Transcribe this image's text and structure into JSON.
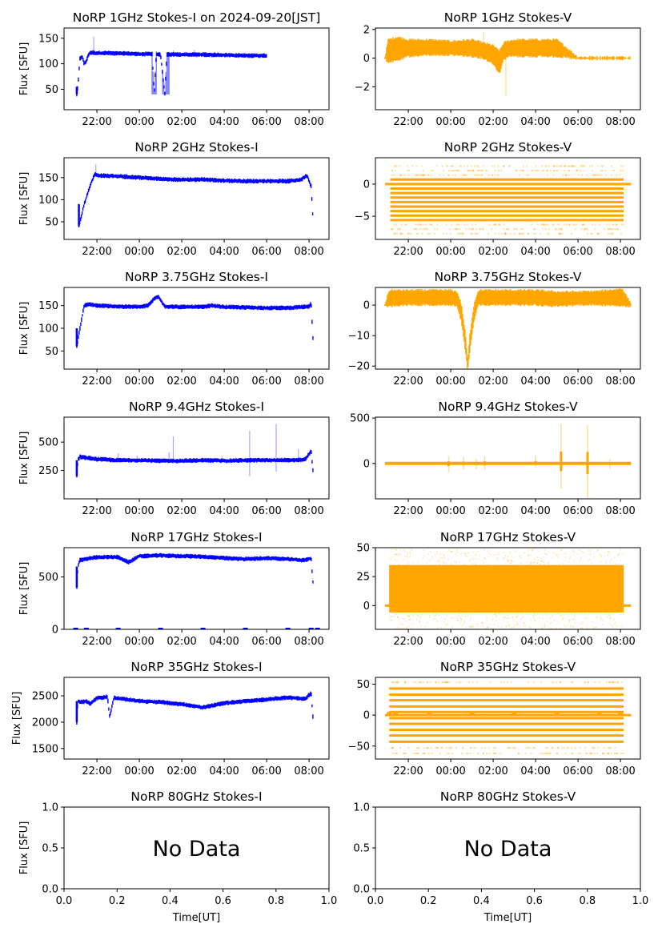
{
  "figure": {
    "panels_per_row": 2,
    "x_time_ticks": [
      "22:00",
      "00:00",
      "02:00",
      "04:00",
      "06:00",
      "08:00"
    ],
    "x_time_tick_hours": [
      0,
      2,
      4,
      6,
      8,
      10
    ],
    "x_time_range_hours_from_2200": [
      -1.55,
      10.94
    ],
    "colors": {
      "stokes_i": "#0000ff",
      "stokes_v": "#ffa500",
      "axes": "#000000"
    }
  },
  "chart_data": [
    {
      "type": "scatter",
      "id": "1ghz-i",
      "title": "NoRP 1GHz Stokes-I on 2024-09-20[JST]",
      "ylabel": "Flux [SFU]",
      "xlabel": "",
      "ylim": [
        10,
        170
      ],
      "yticks": [
        50,
        100,
        150
      ],
      "ytick_labels": [
        "50",
        "100",
        "150"
      ],
      "stokes": "I",
      "grid": false,
      "series": [
        {
          "name": "Stokes-I",
          "color": "#0000ff",
          "x_hours": [
            -0.95,
            -0.9,
            -0.8,
            -0.7,
            -0.6,
            -0.5,
            -0.4,
            -0.3,
            -0.2,
            -0.1,
            0,
            0.5,
            1,
            1.5,
            2,
            2.4,
            2.6,
            2.7,
            2.8,
            3.0,
            3.2,
            3.3,
            3.5,
            4,
            5,
            6,
            7,
            7.5,
            8
          ],
          "values": [
            40,
            55,
            110,
            115,
            100,
            105,
            118,
            122,
            122,
            121,
            121,
            121,
            120,
            120,
            119,
            119,
            119,
            40,
            119,
            118,
            40,
            118,
            118,
            118,
            118,
            117,
            116,
            116,
            116
          ],
          "spikes": [
            {
              "x_hours": -0.15,
              "value": 153
            },
            {
              "x_hours": 3.6,
              "value": 126
            },
            {
              "x_hours": 4.6,
              "value": 127
            }
          ],
          "dropouts": [
            {
              "x_from": 2.6,
              "x_to": 2.8,
              "value": 40
            },
            {
              "x_from": 3.1,
              "x_to": 3.4,
              "value": 40
            }
          ]
        }
      ]
    },
    {
      "type": "scatter",
      "id": "1ghz-v",
      "title": "NoRP 1GHz Stokes-V",
      "ylabel": "",
      "xlabel": "",
      "ylim": [
        -3.6,
        2.1
      ],
      "yticks": [
        -2,
        0,
        2
      ],
      "ytick_labels": [
        "−2",
        "0",
        "2"
      ],
      "stokes": "V",
      "grid": false,
      "series": [
        {
          "name": "Stokes-V",
          "color": "#ffa500",
          "x_hours": [
            -1.1,
            -0.95,
            -0.5,
            0,
            1,
            2,
            3,
            3.5,
            4.0,
            4.3,
            4.5,
            4.7,
            5,
            6,
            7,
            8,
            10.5
          ],
          "values_low": [
            0,
            -0.2,
            -0.1,
            0.2,
            0.3,
            0.3,
            0.2,
            0.1,
            -0.3,
            -1.0,
            0.0,
            0.2,
            0.2,
            0.2,
            0.2,
            0,
            0
          ],
          "values_high": [
            0,
            1.2,
            1.4,
            1.2,
            1.2,
            1.1,
            1.2,
            1.0,
            0.8,
            0.4,
            1.0,
            1.1,
            1.2,
            1.2,
            1.2,
            0,
            0
          ],
          "spikes": [
            {
              "x_hours": 4.6,
              "value": -2.6
            },
            {
              "x_hours": 3.55,
              "value": 1.8
            }
          ]
        }
      ]
    },
    {
      "type": "scatter",
      "id": "2ghz-i",
      "title": "NoRP 2GHz Stokes-I",
      "ylabel": "Flux [SFU]",
      "xlabel": "",
      "ylim": [
        10,
        195
      ],
      "yticks": [
        50,
        100,
        150
      ],
      "ytick_labels": [
        "50",
        "100",
        "150"
      ],
      "stokes": "I",
      "grid": false,
      "series": [
        {
          "name": "Stokes-I",
          "color": "#0000ff",
          "x_hours": [
            -0.85,
            -0.6,
            -0.3,
            -0.1,
            0,
            1,
            2,
            3,
            4,
            5,
            6,
            7,
            8,
            9,
            9.6,
            9.9,
            10.1,
            10.2
          ],
          "values": [
            40,
            90,
            135,
            158,
            155,
            153,
            150,
            147,
            145,
            146,
            143,
            142,
            142,
            142,
            145,
            155,
            130,
            40
          ],
          "spikes": [
            {
              "x_hours": -0.05,
              "value": 180
            }
          ]
        }
      ]
    },
    {
      "type": "scatter",
      "id": "2ghz-v",
      "title": "NoRP 2GHz Stokes-V",
      "ylabel": "",
      "xlabel": "",
      "ylim": [
        -8.6,
        4.1
      ],
      "yticks": [
        -5,
        0
      ],
      "ytick_labels": [
        "−5",
        "0"
      ],
      "stokes": "V",
      "grid": false,
      "series": [
        {
          "name": "Stokes-V",
          "color": "#ffa500",
          "x_range_hours": [
            -0.85,
            10.15
          ],
          "zero_line_x_range": [
            -1.1,
            10.5
          ],
          "quantized_levels": [
            2.8,
            2.1,
            1.4,
            0.7,
            0,
            -0.7,
            -1.4,
            -2.1,
            -2.8,
            -3.5,
            -4.2,
            -4.9,
            -5.6,
            -6.3,
            -7.0,
            -7.7
          ],
          "dense_levels": [
            0.7,
            0,
            -0.7,
            -1.4,
            -2.1,
            -2.8,
            -3.5,
            -4.2,
            -4.9,
            -5.6
          ],
          "sparse_levels": [
            2.8,
            2.1,
            1.4,
            -6.3,
            -7.0,
            -7.7
          ]
        }
      ]
    },
    {
      "type": "scatter",
      "id": "3.75ghz-i",
      "title": "NoRP 3.75GHz Stokes-I",
      "ylabel": "Flux [SFU]",
      "xlabel": "",
      "ylim": [
        10,
        190
      ],
      "yticks": [
        50,
        100,
        150
      ],
      "ytick_labels": [
        "50",
        "100",
        "150"
      ],
      "stokes": "I",
      "grid": false,
      "series": [
        {
          "name": "Stokes-I",
          "color": "#0000ff",
          "x_hours": [
            -0.95,
            -0.8,
            -0.6,
            -0.35,
            0,
            1,
            2,
            2.4,
            2.7,
            2.9,
            3.2,
            4,
            5,
            5.4,
            6,
            7,
            8,
            9,
            10,
            10.1,
            10.2
          ],
          "values": [
            60,
            100,
            150,
            153,
            150,
            148,
            147,
            150,
            165,
            170,
            148,
            147,
            147,
            150,
            147,
            146,
            145,
            145,
            148,
            155,
            60
          ]
        }
      ]
    },
    {
      "type": "scatter",
      "id": "3.75ghz-v",
      "title": "NoRP 3.75GHz Stokes-V",
      "ylabel": "",
      "xlabel": "",
      "ylim": [
        -21,
        5.8
      ],
      "yticks": [
        -20,
        -10,
        0
      ],
      "ytick_labels": [
        "−20",
        "−10",
        "0"
      ],
      "stokes": "V",
      "grid": false,
      "series": [
        {
          "name": "Stokes-V",
          "color": "#ffa500",
          "x_hours": [
            -1.1,
            -0.9,
            0,
            1,
            2,
            2.3,
            2.5,
            2.7,
            2.8,
            2.9,
            3.1,
            3.3,
            4,
            5,
            6,
            7,
            8,
            9,
            10.1,
            10.5
          ],
          "values_low": [
            0,
            0,
            0.5,
            0.5,
            0.5,
            0,
            -5,
            -15,
            -21,
            -15,
            -5,
            0.5,
            0.5,
            0.5,
            0.5,
            0,
            0.5,
            0.5,
            0,
            0
          ],
          "values_high": [
            0,
            4.5,
            4.5,
            4.5,
            4.5,
            4,
            0,
            -10,
            -19,
            -10,
            0,
            4.5,
            4.5,
            4.5,
            4.5,
            4,
            4,
            4.2,
            5,
            0
          ]
        }
      ]
    },
    {
      "type": "scatter",
      "id": "9.4ghz-i",
      "title": "NoRP 9.4GHz Stokes-I",
      "ylabel": "Flux [SFU]",
      "xlabel": "",
      "ylim": [
        0,
        720
      ],
      "yticks": [
        250,
        500
      ],
      "ytick_labels": [
        "250",
        "500"
      ],
      "stokes": "I",
      "grid": false,
      "series": [
        {
          "name": "Stokes-I",
          "color": "#0000ff",
          "x_hours": [
            -0.95,
            -0.9,
            -0.8,
            0,
            1,
            2,
            3,
            4,
            5,
            6,
            7,
            8,
            9,
            9.8,
            10.1,
            10.2
          ],
          "values": [
            200,
            340,
            370,
            350,
            340,
            340,
            335,
            335,
            340,
            335,
            340,
            340,
            340,
            345,
            420,
            210
          ],
          "spikes": [
            {
              "x_hours": 1.0,
              "value": 400
            },
            {
              "x_hours": 1.9,
              "value": 380
            },
            {
              "x_hours": 3.4,
              "value": 410
            },
            {
              "x_hours": 3.6,
              "value": 550
            },
            {
              "x_hours": 5.9,
              "value": 375
            },
            {
              "x_hours": 7.2,
              "value": 600
            },
            {
              "x_hours": 7.2,
              "value": 200
            },
            {
              "x_hours": 8.45,
              "value": 660
            },
            {
              "x_hours": 8.45,
              "value": 240
            },
            {
              "x_hours": 9.5,
              "value": 440
            }
          ]
        }
      ]
    },
    {
      "type": "scatter",
      "id": "9.4ghz-v",
      "title": "NoRP 9.4GHz Stokes-V",
      "ylabel": "",
      "xlabel": "",
      "ylim": [
        -390,
        510
      ],
      "yticks": [
        0,
        500
      ],
      "ytick_labels": [
        "0",
        "500"
      ],
      "stokes": "V",
      "grid": false,
      "series": [
        {
          "name": "Stokes-V",
          "color": "#ffa500",
          "x_range_hours": [
            -1.1,
            10.5
          ],
          "baseline": 0,
          "spikes": [
            {
              "x_hours": 1.9,
              "low": -100,
              "high": 80
            },
            {
              "x_hours": 2.6,
              "low": -70,
              "high": 70
            },
            {
              "x_hours": 3.2,
              "low": -60,
              "high": 50
            },
            {
              "x_hours": 3.6,
              "low": -70,
              "high": 80
            },
            {
              "x_hours": 6.0,
              "low": -50,
              "high": 90
            },
            {
              "x_hours": 7.2,
              "low": -280,
              "high": 440
            },
            {
              "x_hours": 8.45,
              "low": -390,
              "high": 420
            },
            {
              "x_hours": 9.5,
              "low": -60,
              "high": 50
            }
          ]
        }
      ]
    },
    {
      "type": "scatter",
      "id": "17ghz-i",
      "title": "NoRP 17GHz Stokes-I",
      "ylabel": "Flux [SFU]",
      "xlabel": "",
      "ylim": [
        0,
        780
      ],
      "yticks": [
        0,
        500
      ],
      "ytick_labels": [
        "0",
        "500"
      ],
      "stokes": "I",
      "grid": false,
      "series": [
        {
          "name": "Stokes-I",
          "color": "#0000ff",
          "x_hours": [
            -0.95,
            -0.9,
            -0.8,
            0,
            1,
            1.5,
            2,
            3,
            4,
            5,
            6,
            7,
            8,
            9,
            9.8,
            10.1,
            10.2
          ],
          "values": [
            400,
            600,
            660,
            690,
            690,
            640,
            700,
            705,
            700,
            695,
            680,
            670,
            680,
            670,
            660,
            680,
            400
          ],
          "zero_markers_x_hours": [
            -1.0,
            -0.5,
            1,
            3,
            5,
            7,
            9,
            10.1,
            10.4
          ]
        }
      ]
    },
    {
      "type": "scatter",
      "id": "17ghz-v",
      "title": "NoRP 17GHz Stokes-V",
      "ylabel": "",
      "xlabel": "",
      "ylim": [
        -20.5,
        50
      ],
      "yticks": [
        0,
        25,
        50
      ],
      "ytick_labels": [
        "0",
        "25",
        "50"
      ],
      "stokes": "V",
      "grid": false,
      "series": [
        {
          "name": "Stokes-V",
          "color": "#ffa500",
          "x_range_hours": [
            -0.9,
            10.15
          ],
          "band_low": -6,
          "band_high": 35,
          "scatter_low": -20,
          "scatter_high": 49,
          "zero_line_x_range": [
            -1.1,
            10.5
          ]
        }
      ]
    },
    {
      "type": "scatter",
      "id": "35ghz-i",
      "title": "NoRP 35GHz Stokes-I",
      "ylabel": "Flux [SFU]",
      "xlabel": "",
      "ylim": [
        1300,
        2850
      ],
      "yticks": [
        1500,
        2000,
        2500
      ],
      "ytick_labels": [
        "1500",
        "2000",
        "2500"
      ],
      "stokes": "I",
      "grid": false,
      "series": [
        {
          "name": "Stokes-I",
          "color": "#0000ff",
          "x_hours": [
            -0.95,
            -0.9,
            -0.7,
            -0.5,
            -0.3,
            0,
            0.5,
            0.6,
            0.8,
            1,
            2,
            3,
            4,
            5,
            6,
            7,
            8,
            9,
            9.8,
            10.1,
            10.2
          ],
          "values": [
            2000,
            2400,
            2380,
            2400,
            2350,
            2460,
            2480,
            2100,
            2460,
            2450,
            2400,
            2380,
            2340,
            2280,
            2360,
            2400,
            2430,
            2470,
            2440,
            2550,
            2000
          ]
        }
      ]
    },
    {
      "type": "scatter",
      "id": "35ghz-v",
      "title": "NoRP 35GHz Stokes-V",
      "ylabel": "",
      "xlabel": "",
      "ylim": [
        -71,
        61
      ],
      "yticks": [
        -50,
        0,
        50
      ],
      "ytick_labels": [
        "−50",
        "0",
        "50"
      ],
      "stokes": "V",
      "grid": false,
      "series": [
        {
          "name": "Stokes-V",
          "color": "#ffa500",
          "x_range_hours": [
            -0.9,
            10.15
          ],
          "zero_line_x_range": [
            -1.1,
            10.5
          ],
          "dense_levels": [
            43,
            33,
            24,
            14,
            5,
            -5,
            -14,
            -24,
            -33,
            -43
          ],
          "sparse_levels": [
            53,
            -53,
            -62
          ],
          "zero_markers_x_hours": [
            -0.9,
            -0.6,
            1,
            3,
            5,
            7,
            9,
            10.0
          ]
        }
      ]
    },
    {
      "type": "scatter",
      "id": "80ghz-i",
      "title": "NoRP 80GHz Stokes-I",
      "ylabel": "Flux [SFU]",
      "xlabel": "Time[UT]",
      "ylim": [
        0,
        1
      ],
      "xlim": [
        0,
        1
      ],
      "yticks": [
        0,
        0.5,
        1
      ],
      "ytick_labels": [
        "0.0",
        "0.5",
        "1.0"
      ],
      "xticks": [
        0,
        0.2,
        0.4,
        0.6,
        0.8,
        1
      ],
      "xtick_labels": [
        "0.0",
        "0.2",
        "0.4",
        "0.6",
        "0.8",
        "1.0"
      ],
      "annotation": "No Data",
      "stokes": "I",
      "grid": false,
      "series": []
    },
    {
      "type": "scatter",
      "id": "80ghz-v",
      "title": "NoRP 80GHz Stokes-V",
      "ylabel": "",
      "xlabel": "Time[UT]",
      "ylim": [
        0,
        1
      ],
      "xlim": [
        0,
        1
      ],
      "yticks": [
        0,
        0.5,
        1
      ],
      "ytick_labels": [
        "0.0",
        "0.5",
        "1.0"
      ],
      "xticks": [
        0,
        0.2,
        0.4,
        0.6,
        0.8,
        1
      ],
      "xtick_labels": [
        "0.0",
        "0.2",
        "0.4",
        "0.6",
        "0.8",
        "1.0"
      ],
      "annotation": "No Data",
      "stokes": "V",
      "grid": false,
      "series": []
    }
  ]
}
